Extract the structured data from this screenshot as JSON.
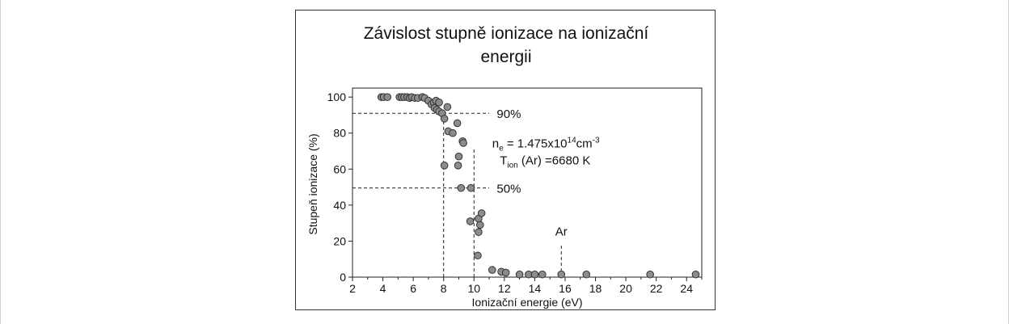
{
  "chart_data": {
    "type": "scatter",
    "title_lines": [
      "Závislost stupně ionizace na ionizační",
      "energii"
    ],
    "xlabel": "Ionizační energie (eV)",
    "ylabel": "Stupeň ionizace (%)",
    "xlim": [
      2,
      25
    ],
    "ylim": [
      0,
      105
    ],
    "xticks": [
      2,
      4,
      6,
      8,
      10,
      12,
      14,
      16,
      18,
      20,
      22,
      24
    ],
    "yticks": [
      0,
      20,
      40,
      60,
      80,
      100
    ],
    "grid": false,
    "marker_color": "#8c8c8c",
    "marker_edge_color": "#333333",
    "points": [
      [
        3.9,
        100
      ],
      [
        4.05,
        100
      ],
      [
        4.3,
        100
      ],
      [
        5.1,
        100
      ],
      [
        5.25,
        100
      ],
      [
        5.4,
        100
      ],
      [
        5.6,
        100
      ],
      [
        5.75,
        99.5
      ],
      [
        5.9,
        100
      ],
      [
        6.1,
        99.5
      ],
      [
        6.3,
        99.5
      ],
      [
        6.6,
        100
      ],
      [
        6.75,
        99.5
      ],
      [
        7.0,
        98
      ],
      [
        7.2,
        96
      ],
      [
        7.35,
        97
      ],
      [
        7.5,
        98
      ],
      [
        7.7,
        97
      ],
      [
        7.4,
        94
      ],
      [
        7.55,
        93
      ],
      [
        7.7,
        92
      ],
      [
        7.9,
        91
      ],
      [
        8.05,
        88
      ],
      [
        8.25,
        94.5
      ],
      [
        8.3,
        81
      ],
      [
        8.6,
        80
      ],
      [
        8.9,
        85.5
      ],
      [
        9.25,
        75.5
      ],
      [
        8.05,
        62
      ],
      [
        8.95,
        62
      ],
      [
        9.0,
        67
      ],
      [
        9.3,
        74.5
      ],
      [
        9.15,
        49.5
      ],
      [
        9.8,
        49.5
      ],
      [
        9.75,
        31
      ],
      [
        10.3,
        32.5
      ],
      [
        10.5,
        35.5
      ],
      [
        10.4,
        29
      ],
      [
        10.3,
        25
      ],
      [
        10.25,
        12
      ],
      [
        11.2,
        4
      ],
      [
        11.8,
        3
      ],
      [
        12.1,
        2.5
      ],
      [
        13.0,
        1.5
      ],
      [
        13.6,
        1.5
      ],
      [
        14.0,
        1.5
      ],
      [
        14.5,
        1.5
      ],
      [
        15.75,
        1.5
      ],
      [
        17.4,
        1.5
      ],
      [
        21.6,
        1.5
      ],
      [
        24.6,
        1.5
      ]
    ],
    "reference_lines": {
      "h90": {
        "y": 91,
        "x_from": 2,
        "x_to": 11
      },
      "h50": {
        "y": 49.5,
        "x_from": 2,
        "x_to": 11
      },
      "v8": {
        "x": 8,
        "y_from": 0,
        "y_to": 91
      },
      "v10": {
        "x": 10,
        "y_from": 0,
        "y_to": 72
      },
      "v_ar": {
        "x": 15.75,
        "y_from": 0,
        "y_to": 17.5
      }
    },
    "annotations": {
      "label_90": {
        "text": "90%",
        "x": 11.5,
        "y": 91
      },
      "label_50": {
        "text": "50%",
        "x": 11.5,
        "y": 49.5
      },
      "label_ar": {
        "text": "Ar",
        "x": 15.75,
        "y": 23
      },
      "ne_prefix": "n",
      "ne_sub": "e",
      "ne_mid": " = 1.475x10",
      "ne_sup1": "14",
      "ne_unit": "cm",
      "ne_sup2": "-3",
      "ne_pos": {
        "x": 11.2,
        "y": 72
      },
      "tion_prefix": "T",
      "tion_sub": "ion",
      "tion_rest": " (Ar) =6680 K",
      "tion_pos": {
        "x": 11.7,
        "y": 62.5
      }
    }
  }
}
